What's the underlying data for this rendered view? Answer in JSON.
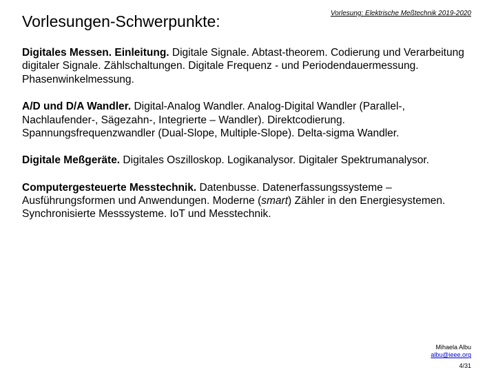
{
  "header": {
    "meta": "Vorlesung: Elektrische Meßtechnik 2019-2020",
    "title": "Vorlesungen-Schwerpunkte:"
  },
  "sections": {
    "s1_bold": "Digitales Messen. Einleitung.",
    "s1_rest": " Digitale Signale. Abtast-theorem. Codierung und Verarbeitung digitaler Signale. Zählschaltungen. Digitale Frequenz - und Periodendauermessung. Phasenwinkelmessung.",
    "s2_bold": "A/D und D/A Wandler.",
    "s2_rest": " Digital-Analog Wandler. Analog-Digital Wandler (Parallel-, Nachlaufender-, Sägezahn-, Integrierte – Wandler). Direktcodierung. Spannungsfrequenzwandler (Dual-Slope, Multiple-Slope). Delta-sigma Wandler.",
    "s3_bold": "Digitale Meßgeräte.",
    "s3_rest": " Digitales Oszilloskop. Logikanalysor. Digitaler Spektrumanalysor.",
    "s4_bold": "Computergesteuerte Messtechnik.",
    "s4_a": " Datenbusse. Datenerfassungssysteme – Ausführungsformen und Anwendungen. Moderne (",
    "s4_italic": "smart",
    "s4_b": ") Zähler in den Energiesystemen. Synchronisierte Messsysteme. IoT und Messtechnik."
  },
  "footer": {
    "author": "Mihaela Albu",
    "email": "albu@ieee.org",
    "page": "4/31"
  }
}
